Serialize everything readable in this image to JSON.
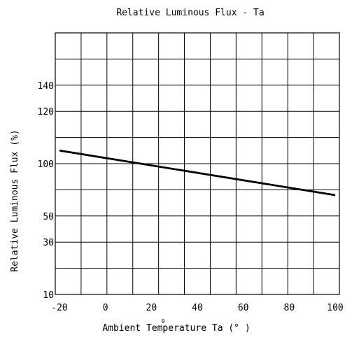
{
  "chart_data": {
    "type": "line",
    "title": "Relative Luminous Flux - Ta",
    "xlabel": "Ambient Temperature Ta (° )",
    "xlabel_mark": "0",
    "ylabel": "Relative Luminous Flux (%)",
    "xlim": [
      -20,
      100
    ],
    "x_ticks": [
      -20,
      0,
      20,
      40,
      60,
      80,
      100
    ],
    "x_tick_labels": [
      "-20",
      "0",
      "20",
      "40",
      "60",
      "80",
      "100"
    ],
    "y_tick_labels": [
      "140",
      "120",
      "100",
      "50",
      "30",
      "10"
    ],
    "grid": true,
    "grid_columns": 11,
    "grid_rows": 10,
    "line_color": "#000000",
    "series": [
      {
        "x": [
          -20,
          100
        ],
        "y": [
          105,
          70
        ]
      }
    ]
  }
}
